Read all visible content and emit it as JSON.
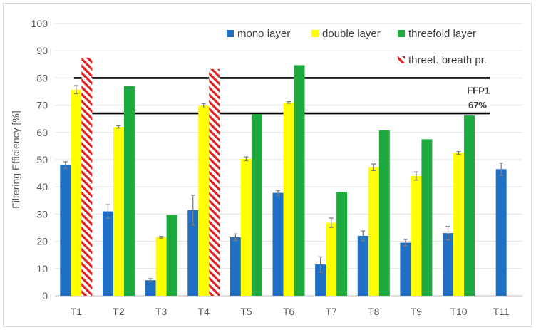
{
  "chart_data": {
    "type": "bar",
    "title": "",
    "xlabel": "",
    "ylabel": "Filtering Efficiency [%]",
    "ylim": [
      0,
      100
    ],
    "yticks": [
      0,
      10,
      20,
      30,
      40,
      50,
      60,
      70,
      80,
      90,
      100
    ],
    "categories": [
      "T1",
      "T2",
      "T3",
      "T4",
      "T5",
      "T6",
      "T7",
      "T8",
      "T9",
      "T10",
      "T11"
    ],
    "series": [
      {
        "name": "mono layer",
        "color": "#1f6fc5",
        "values": [
          48,
          31,
          5.7,
          31.5,
          21.5,
          37.8,
          11.5,
          22,
          19.5,
          23,
          46.5
        ],
        "errors": [
          1.2,
          2.5,
          0.6,
          5.5,
          1.2,
          0.9,
          2.8,
          1.8,
          1.2,
          2.5,
          2.3
        ]
      },
      {
        "name": "double layer",
        "color": "#ffff00",
        "values": [
          75.7,
          62,
          21.5,
          69.8,
          50.3,
          71,
          26.8,
          47.2,
          44,
          52.5,
          null
        ],
        "errors": [
          1.5,
          0.4,
          0.3,
          0.8,
          0.7,
          0.3,
          1.7,
          1.2,
          1.5,
          0.5,
          null
        ]
      },
      {
        "name": "threefold layer",
        "color": "#1faa3f",
        "values": [
          null,
          77,
          29.7,
          null,
          66.7,
          84.7,
          38.2,
          60.8,
          57.5,
          66.2,
          null
        ],
        "errors": [
          null,
          null,
          null,
          null,
          null,
          null,
          null,
          null,
          null,
          null,
          null
        ]
      },
      {
        "name": "threef. breath pr.",
        "color": "#e02020",
        "pattern": "hatched",
        "values": [
          87.5,
          null,
          null,
          83.3,
          null,
          null,
          null,
          null,
          null,
          null,
          null
        ],
        "errors": [
          null,
          null,
          null,
          null,
          null,
          null,
          null,
          null,
          null,
          null,
          null
        ]
      }
    ],
    "reference_lines": [
      {
        "value": 80,
        "label": "FFP1",
        "color": "#000000"
      },
      {
        "value": 67,
        "label": "67%",
        "color": "#000000"
      }
    ],
    "legend_position": "top-right",
    "grid": true
  }
}
